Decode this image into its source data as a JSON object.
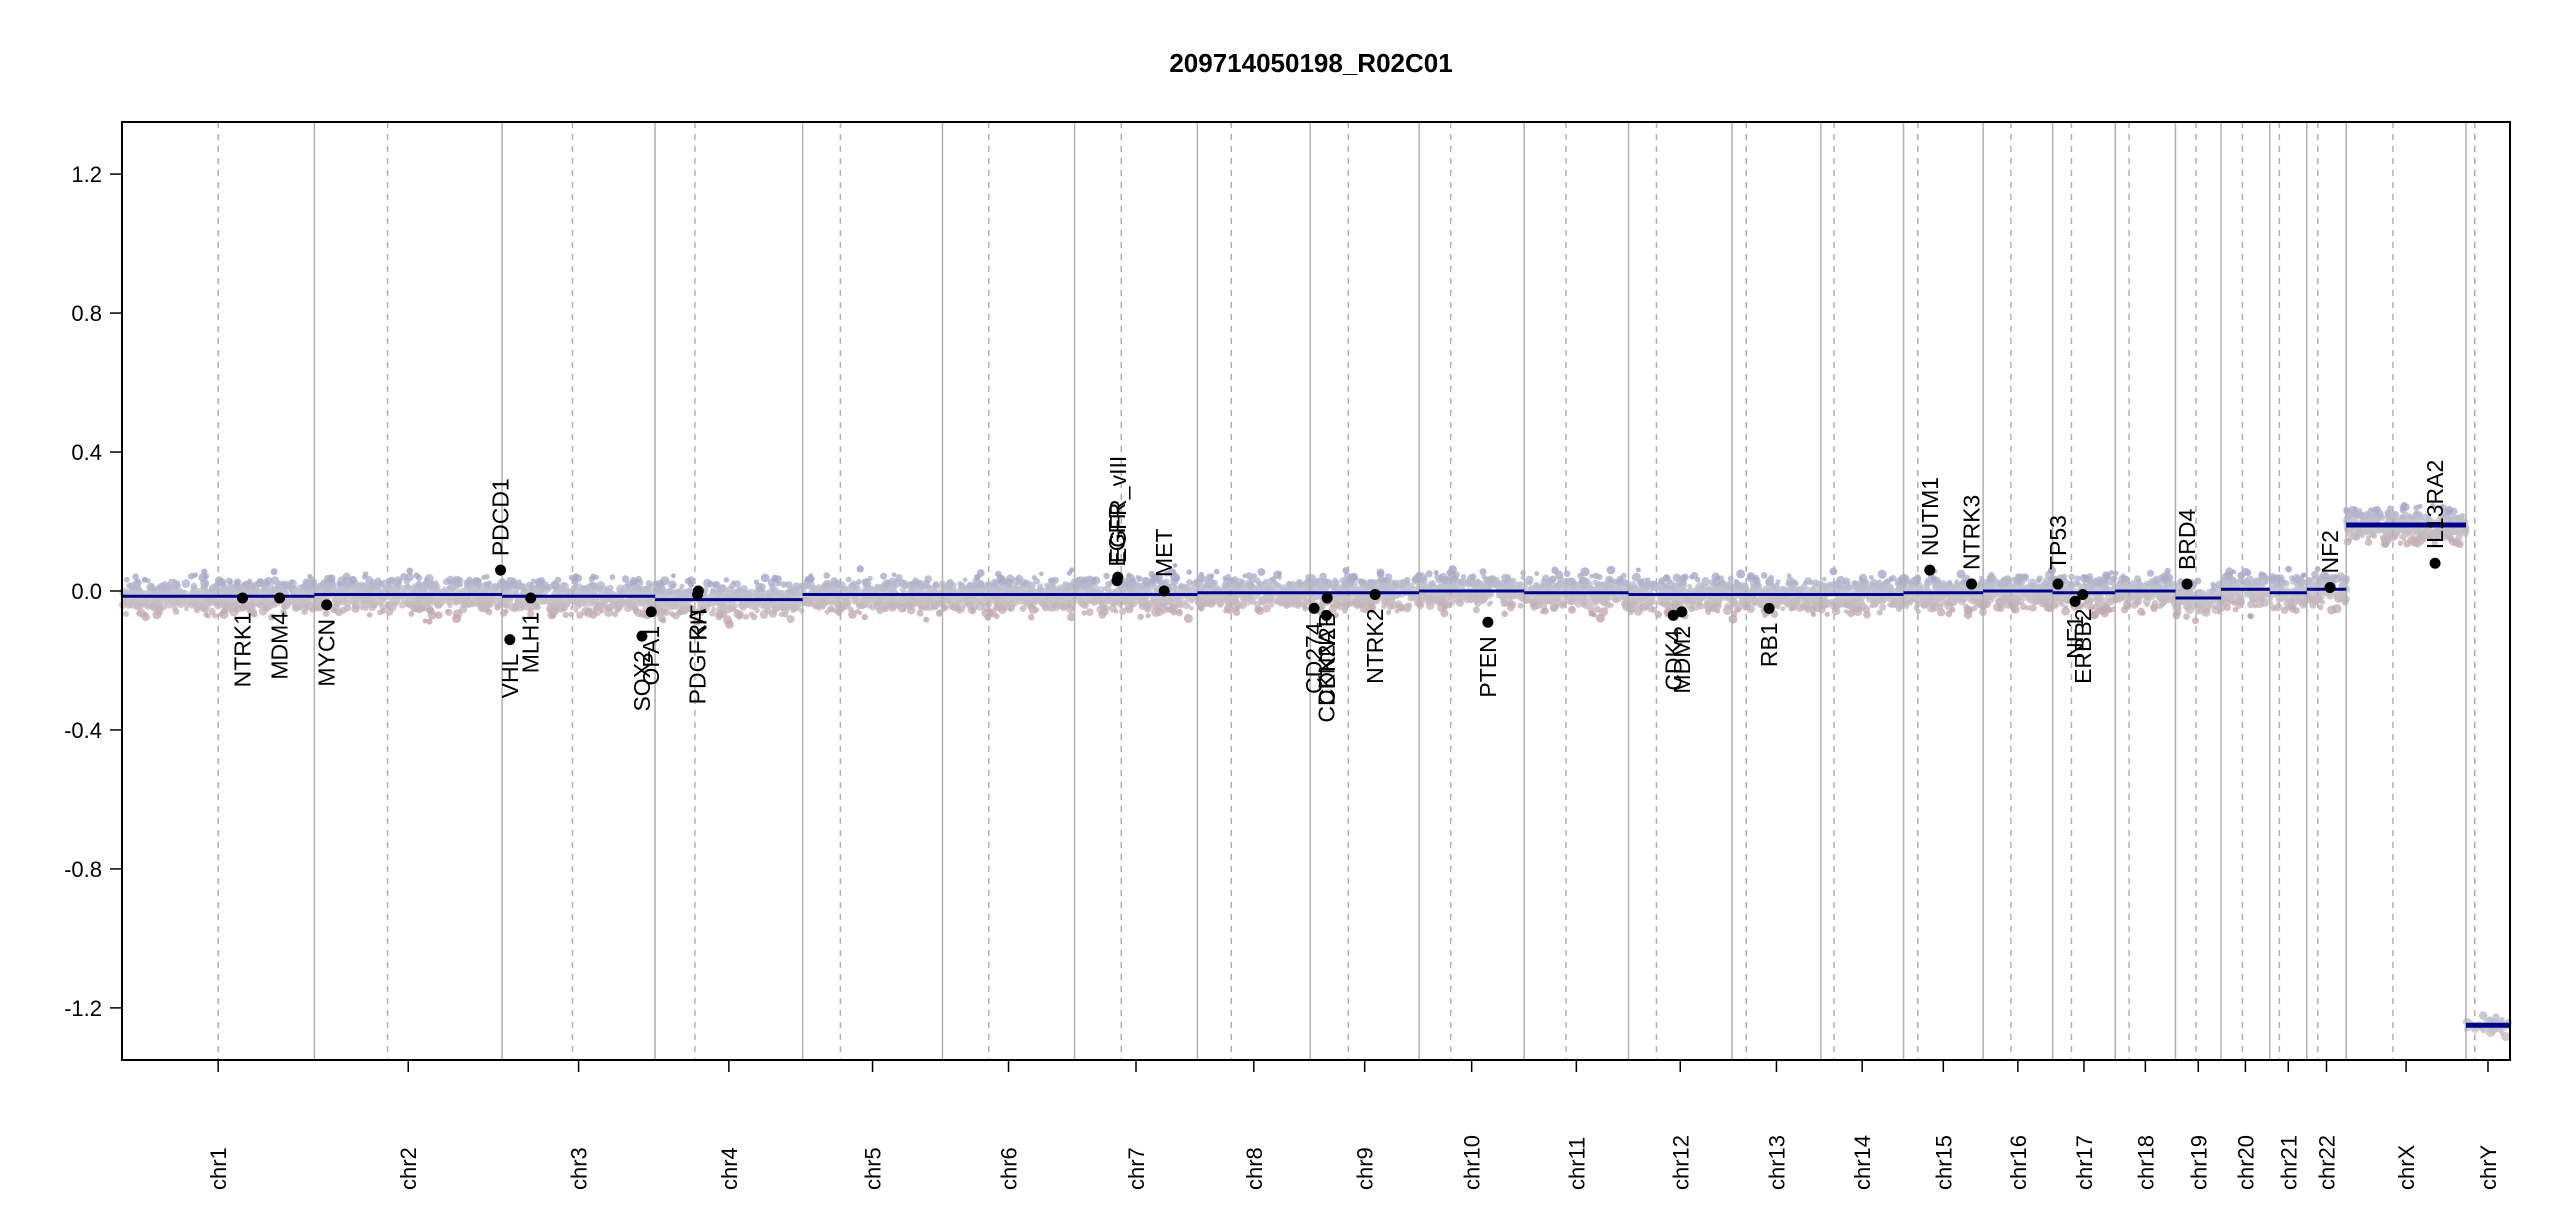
{
  "chart_data": {
    "type": "scatter",
    "title": "209714050198_R02C01",
    "xlabel": "",
    "ylabel": "",
    "ylim": [
      -1.35,
      1.35
    ],
    "yticks": [
      1.2,
      0.8,
      0.4,
      0.0,
      -0.4,
      -0.8,
      -1.2
    ],
    "ytick_labels": [
      "1.2",
      "0.8",
      "0.4",
      "0.0",
      "-0.4",
      "-0.8",
      "-1.2"
    ],
    "grid": false,
    "colors": {
      "gain": "#6a6ab4",
      "neutral": "#c8c8d0",
      "loss": "#b47878",
      "segment": "#00008b",
      "gene_point": "#000000",
      "separator": "#b0b0b0"
    },
    "chromosomes": [
      {
        "name": "chr1",
        "length": 249,
        "centromere": 0.5
      },
      {
        "name": "chr2",
        "length": 243,
        "centromere": 0.39
      },
      {
        "name": "chr3",
        "length": 198,
        "centromere": 0.46
      },
      {
        "name": "chr4",
        "length": 191,
        "centromere": 0.27
      },
      {
        "name": "chr5",
        "length": 181,
        "centromere": 0.27
      },
      {
        "name": "chr6",
        "length": 171,
        "centromere": 0.35
      },
      {
        "name": "chr7",
        "length": 159,
        "centromere": 0.38
      },
      {
        "name": "chr8",
        "length": 146,
        "centromere": 0.3
      },
      {
        "name": "chr9",
        "length": 141,
        "centromere": 0.35
      },
      {
        "name": "chr10",
        "length": 136,
        "centromere": 0.3
      },
      {
        "name": "chr11",
        "length": 135,
        "centromere": 0.4
      },
      {
        "name": "chr12",
        "length": 134,
        "centromere": 0.27
      },
      {
        "name": "chr13",
        "length": 115,
        "centromere": 0.16
      },
      {
        "name": "chr14",
        "length": 107,
        "centromere": 0.16
      },
      {
        "name": "chr15",
        "length": 103,
        "centromere": 0.18
      },
      {
        "name": "chr16",
        "length": 90,
        "centromere": 0.4
      },
      {
        "name": "chr17",
        "length": 81,
        "centromere": 0.3
      },
      {
        "name": "chr18",
        "length": 78,
        "centromere": 0.23
      },
      {
        "name": "chr19",
        "length": 59,
        "centromere": 0.45
      },
      {
        "name": "chr20",
        "length": 63,
        "centromere": 0.44
      },
      {
        "name": "chr21",
        "length": 48,
        "centromere": 0.26
      },
      {
        "name": "chr22",
        "length": 51,
        "centromere": 0.28
      },
      {
        "name": "chrX",
        "length": 155,
        "centromere": 0.39
      },
      {
        "name": "chrY",
        "length": 57,
        "centromere": 0.2
      }
    ],
    "segments": [
      {
        "chrom": "chr1",
        "start": 0,
        "end": 249,
        "value": -0.015
      },
      {
        "chrom": "chr2",
        "start": 0,
        "end": 243,
        "value": -0.01
      },
      {
        "chrom": "chr3",
        "start": 0,
        "end": 198,
        "value": -0.015
      },
      {
        "chrom": "chr4",
        "start": 0,
        "end": 191,
        "value": -0.025
      },
      {
        "chrom": "chr5",
        "start": 0,
        "end": 181,
        "value": -0.01
      },
      {
        "chrom": "chr6",
        "start": 0,
        "end": 171,
        "value": -0.01
      },
      {
        "chrom": "chr7",
        "start": 0,
        "end": 159,
        "value": -0.01
      },
      {
        "chrom": "chr8",
        "start": 0,
        "end": 146,
        "value": -0.005
      },
      {
        "chrom": "chr9",
        "start": 0,
        "end": 141,
        "value": -0.005
      },
      {
        "chrom": "chr10",
        "start": 0,
        "end": 136,
        "value": 0.0
      },
      {
        "chrom": "chr11",
        "start": 0,
        "end": 135,
        "value": -0.005
      },
      {
        "chrom": "chr12",
        "start": 0,
        "end": 134,
        "value": -0.01
      },
      {
        "chrom": "chr13",
        "start": 0,
        "end": 115,
        "value": -0.01
      },
      {
        "chrom": "chr14",
        "start": 0,
        "end": 107,
        "value": -0.01
      },
      {
        "chrom": "chr15",
        "start": 0,
        "end": 103,
        "value": -0.005
      },
      {
        "chrom": "chr16",
        "start": 0,
        "end": 90,
        "value": 0.0
      },
      {
        "chrom": "chr17",
        "start": 0,
        "end": 81,
        "value": -0.005
      },
      {
        "chrom": "chr18",
        "start": 0,
        "end": 78,
        "value": 0.0
      },
      {
        "chrom": "chr19",
        "start": 0,
        "end": 59,
        "value": -0.02
      },
      {
        "chrom": "chr20",
        "start": 0,
        "end": 63,
        "value": 0.005
      },
      {
        "chrom": "chr21",
        "start": 0,
        "end": 48,
        "value": -0.005
      },
      {
        "chrom": "chr22",
        "start": 0,
        "end": 51,
        "value": 0.005
      },
      {
        "chrom": "chrX",
        "start": 0,
        "end": 155,
        "value": 0.19
      },
      {
        "chrom": "chrY",
        "start": 0,
        "end": 57,
        "value": -1.25
      }
    ],
    "genes": [
      {
        "name": "NTRK1",
        "chrom": "chr1",
        "pos": 156,
        "value": -0.02,
        "label_side": "below"
      },
      {
        "name": "MDM4",
        "chrom": "chr1",
        "pos": 204,
        "value": -0.02,
        "label_side": "below"
      },
      {
        "name": "MYCN",
        "chrom": "chr2",
        "pos": 16,
        "value": -0.04,
        "label_side": "below"
      },
      {
        "name": "PDCD1",
        "chrom": "chr2",
        "pos": 241,
        "value": 0.06,
        "label_side": "above"
      },
      {
        "name": "VHL",
        "chrom": "chr3",
        "pos": 10,
        "value": -0.14,
        "label_side": "below"
      },
      {
        "name": "MLH1",
        "chrom": "chr3",
        "pos": 37,
        "value": -0.02,
        "label_side": "below"
      },
      {
        "name": "SOX2",
        "chrom": "chr3",
        "pos": 181,
        "value": -0.13,
        "label_side": "below"
      },
      {
        "name": "OPA1",
        "chrom": "chr3",
        "pos": 193,
        "value": -0.06,
        "label_side": "below"
      },
      {
        "name": "PDGFRA",
        "chrom": "chr4",
        "pos": 55,
        "value": -0.01,
        "label_side": "below"
      },
      {
        "name": "KIT",
        "chrom": "chr4",
        "pos": 56,
        "value": 0.0,
        "label_side": "below"
      },
      {
        "name": "EGFR",
        "chrom": "chr7",
        "pos": 55,
        "value": 0.03,
        "label_side": "above"
      },
      {
        "name": "EGFR_vIII",
        "chrom": "chr7",
        "pos": 56,
        "value": 0.04,
        "label_side": "above"
      },
      {
        "name": "MET",
        "chrom": "chr7",
        "pos": 116,
        "value": 0.0,
        "label_side": "above"
      },
      {
        "name": "CD274",
        "chrom": "chr9",
        "pos": 5,
        "value": -0.05,
        "label_side": "below"
      },
      {
        "name": "CDKN2A",
        "chrom": "chr9",
        "pos": 21,
        "value": -0.07,
        "label_side": "below"
      },
      {
        "name": "CDKN2B",
        "chrom": "chr9",
        "pos": 22,
        "value": -0.02,
        "label_side": "below"
      },
      {
        "name": "NTRK2",
        "chrom": "chr9",
        "pos": 84,
        "value": -0.01,
        "label_side": "below"
      },
      {
        "name": "PTEN",
        "chrom": "chr10",
        "pos": 89,
        "value": -0.09,
        "label_side": "below"
      },
      {
        "name": "CDK4",
        "chrom": "chr12",
        "pos": 58,
        "value": -0.07,
        "label_side": "below"
      },
      {
        "name": "MDM2",
        "chrom": "chr12",
        "pos": 69,
        "value": -0.06,
        "label_side": "below"
      },
      {
        "name": "RB1",
        "chrom": "chr13",
        "pos": 48,
        "value": -0.05,
        "label_side": "below"
      },
      {
        "name": "NUTM1",
        "chrom": "chr15",
        "pos": 34,
        "value": 0.06,
        "label_side": "above"
      },
      {
        "name": "NTRK3",
        "chrom": "chr15",
        "pos": 88,
        "value": 0.02,
        "label_side": "above"
      },
      {
        "name": "TP53",
        "chrom": "chr17",
        "pos": 7,
        "value": 0.02,
        "label_side": "above"
      },
      {
        "name": "NF1",
        "chrom": "chr17",
        "pos": 29,
        "value": -0.03,
        "label_side": "below"
      },
      {
        "name": "ERBB2",
        "chrom": "chr17",
        "pos": 39,
        "value": -0.01,
        "label_side": "below"
      },
      {
        "name": "BRD4",
        "chrom": "chr19",
        "pos": 15,
        "value": 0.02,
        "label_side": "above"
      },
      {
        "name": "NF2",
        "chrom": "chr22",
        "pos": 30,
        "value": 0.01,
        "label_side": "above"
      },
      {
        "name": "IL13RA2",
        "chrom": "chrX",
        "pos": 115,
        "value": 0.08,
        "label_side": "above"
      }
    ]
  }
}
